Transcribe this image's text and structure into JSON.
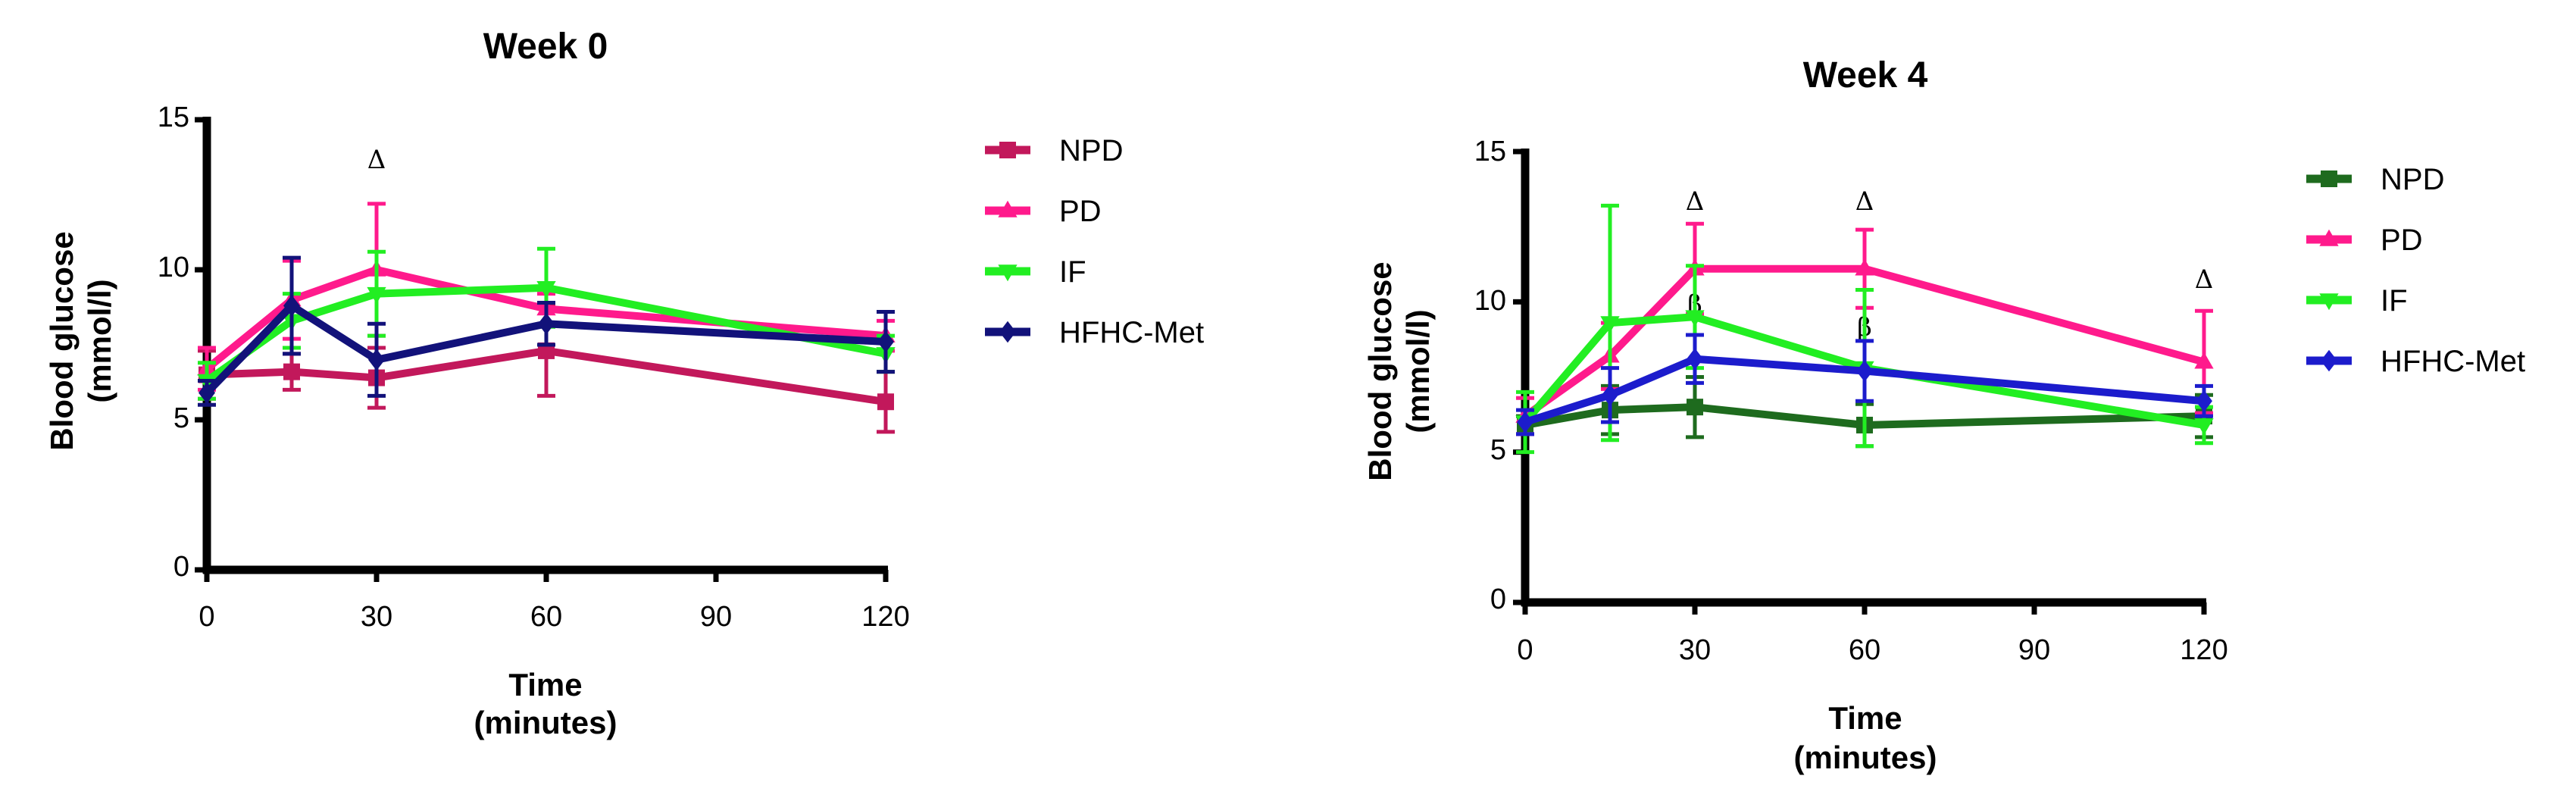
{
  "chart_data": [
    {
      "type": "line",
      "title": "Week 0",
      "xlabel": "Time",
      "xlabel2": "(minutes)",
      "ylabel": "Blood glucose",
      "ylabel2": "(mmol/l)",
      "xlim": [
        0,
        120
      ],
      "ylim": [
        0,
        15
      ],
      "xticks": [
        "0",
        "30",
        "60",
        "90",
        "120"
      ],
      "yticks": [
        "0",
        "5",
        "10",
        "15"
      ],
      "x": [
        0,
        15,
        30,
        60,
        120
      ],
      "series": [
        {
          "name": "NPD",
          "color": "#c2185b",
          "marker": "square",
          "values": [
            6.5,
            6.6,
            6.4,
            7.3,
            5.6
          ],
          "errors": [
            0.8,
            0.6,
            1.0,
            1.5,
            1.0
          ]
        },
        {
          "name": "PD",
          "color": "#ff1a8c",
          "marker": "triangle-up",
          "values": [
            6.7,
            9.0,
            10.0,
            8.7,
            7.8
          ],
          "errors": [
            0.7,
            1.3,
            2.2,
            0.5,
            0.5
          ]
        },
        {
          "name": "IF",
          "color": "#22ee22",
          "marker": "triangle-down",
          "values": [
            6.3,
            8.3,
            9.2,
            9.4,
            7.2
          ],
          "errors": [
            0.6,
            0.9,
            1.4,
            1.3,
            0.6
          ]
        },
        {
          "name": "HFHC-Met",
          "color": "#12127a",
          "marker": "diamond",
          "values": [
            5.9,
            8.8,
            7.0,
            8.2,
            7.6
          ],
          "errors": [
            0.4,
            1.6,
            1.2,
            0.7,
            1.0
          ]
        }
      ],
      "annotations": [
        {
          "x": 30,
          "y": 12.9,
          "text": "Δ"
        }
      ],
      "legend_position": "right"
    },
    {
      "type": "line",
      "title": "Week 4",
      "xlabel": "Time",
      "xlabel2": "(minutes)",
      "ylabel": "Blood glucose",
      "ylabel2": "(mmol/l)",
      "xlim": [
        0,
        120
      ],
      "ylim": [
        0,
        15
      ],
      "xticks": [
        "0",
        "30",
        "60",
        "90",
        "120"
      ],
      "yticks": [
        "0",
        "5",
        "10",
        "15"
      ],
      "x": [
        0,
        15,
        30,
        60,
        120
      ],
      "series": [
        {
          "name": "NPD",
          "color": "#1e6b1e",
          "marker": "square",
          "values": [
            5.9,
            6.4,
            6.5,
            5.9,
            6.2
          ],
          "errors": [
            0.3,
            0.8,
            1.0,
            0.7,
            0.7
          ]
        },
        {
          "name": "PD",
          "color": "#ff1a8c",
          "marker": "triangle-up",
          "values": [
            6.2,
            8.2,
            11.1,
            11.1,
            8.0
          ],
          "errors": [
            0.6,
            1.1,
            1.5,
            1.3,
            1.7
          ]
        },
        {
          "name": "IF",
          "color": "#22ee22",
          "marker": "triangle-down",
          "values": [
            6.0,
            9.3,
            9.5,
            7.8,
            5.9
          ],
          "errors": [
            1.0,
            3.9,
            1.7,
            2.6,
            0.6
          ]
        },
        {
          "name": "HFHC-Met",
          "color": "#1c1ccc",
          "marker": "diamond",
          "values": [
            6.0,
            6.9,
            8.1,
            7.7,
            6.7
          ],
          "errors": [
            0.4,
            0.9,
            0.8,
            1.0,
            0.5
          ]
        }
      ],
      "annotations": [
        {
          "x": 30,
          "y": 13.1,
          "text": "Δ"
        },
        {
          "x": 60,
          "y": 13.1,
          "text": "Δ"
        },
        {
          "x": 120,
          "y": 10.5,
          "text": "Δ"
        },
        {
          "x": 30,
          "y": 9.7,
          "text": "β"
        },
        {
          "x": 60,
          "y": 8.5,
          "text": "β"
        }
      ],
      "legend_position": "right"
    }
  ]
}
